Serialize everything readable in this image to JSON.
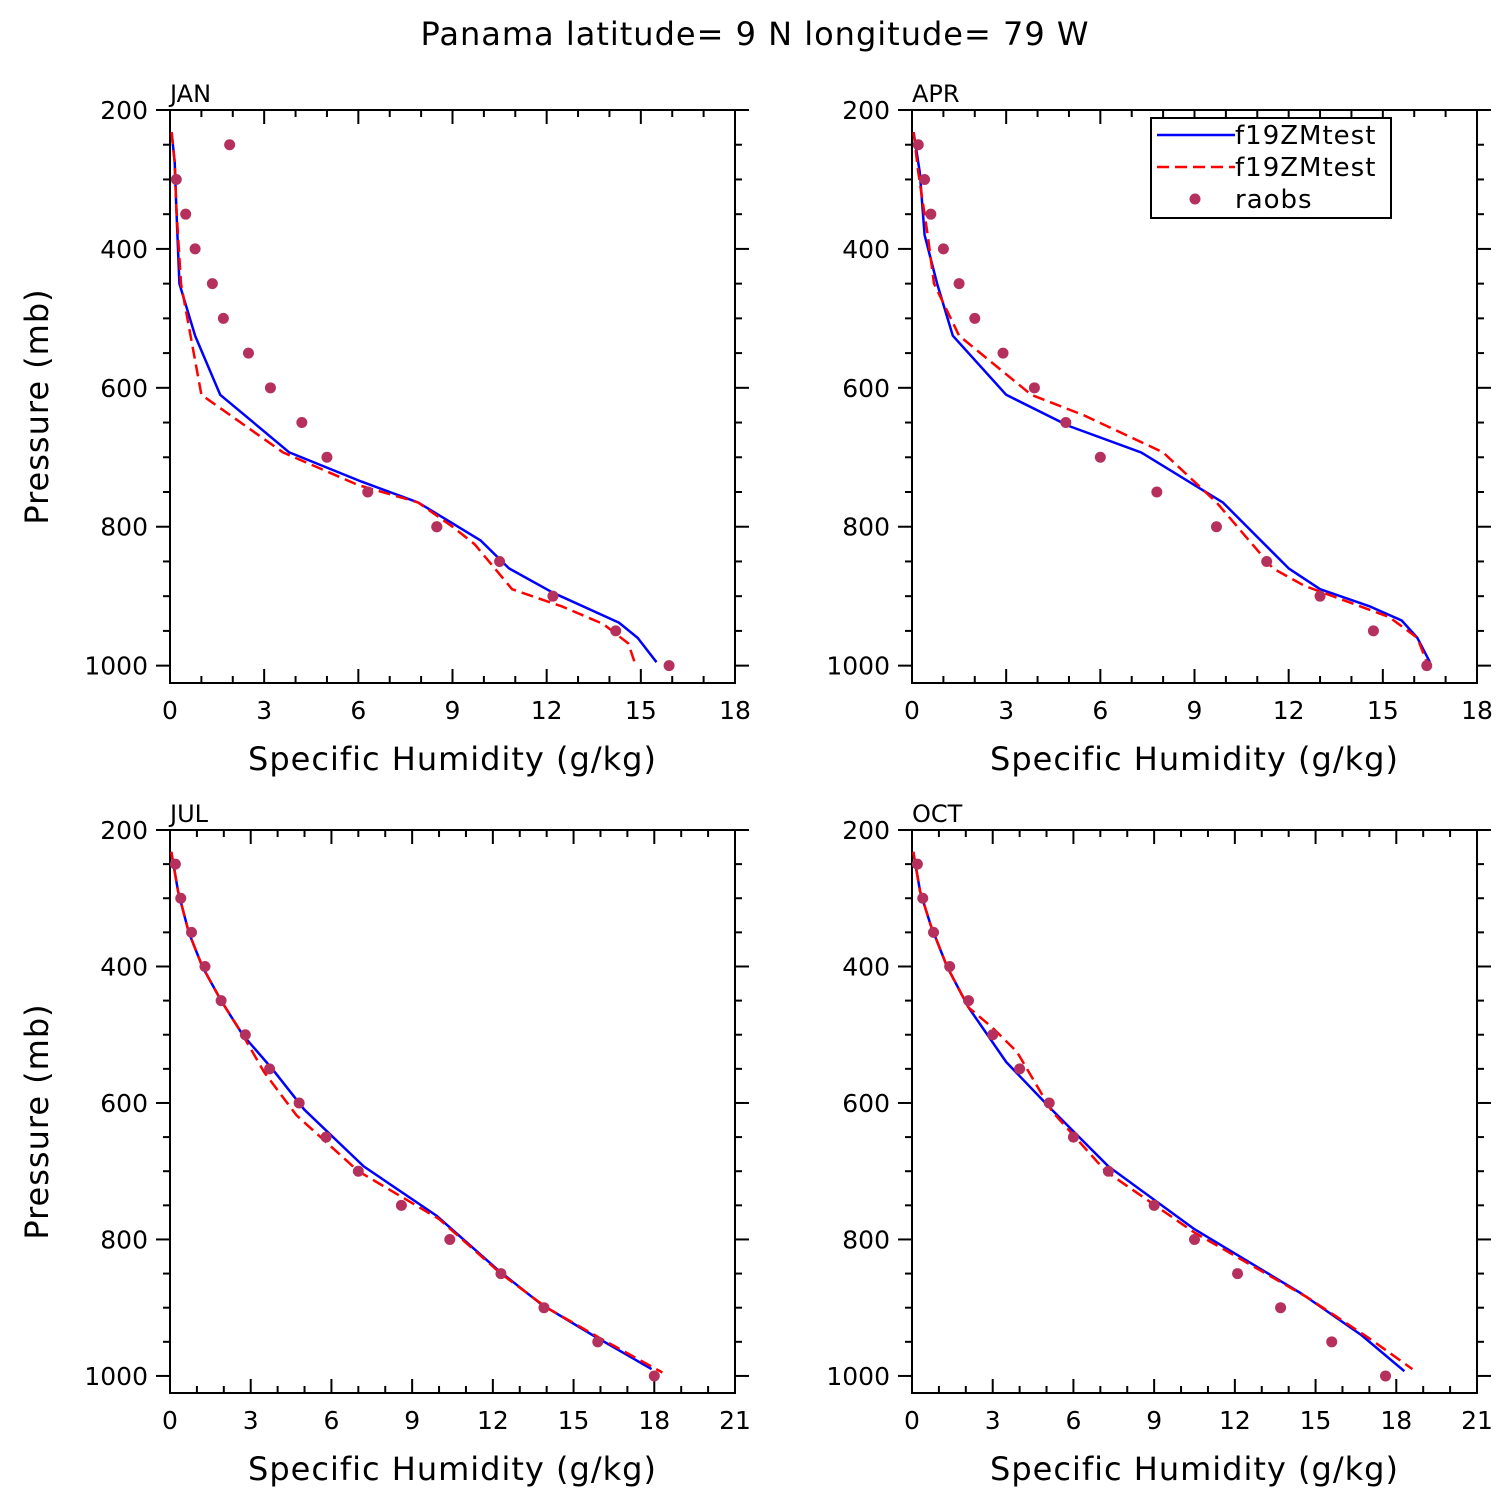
{
  "title": "Panama  latitude= 9 N longitude= 79 W",
  "legend": {
    "entries": [
      {
        "label": "f19ZMtest",
        "style": "solid",
        "color": "#0000ff"
      },
      {
        "label": "f19ZMtest",
        "style": "dashed",
        "color": "#ff0000"
      },
      {
        "label": "raobs",
        "style": "marker",
        "color": "#b5305c"
      }
    ]
  },
  "colors": {
    "model_solid": "#0000ff",
    "model_dashed": "#ff0000",
    "raobs": "#b5305c"
  },
  "chart_data": [
    {
      "type": "line",
      "panel": "JAN",
      "xlabel": "Specific Humidity (g/kg)",
      "ylabel": "Pressure (mb)",
      "xlim": [
        0,
        18
      ],
      "ylim": [
        200,
        1025
      ],
      "y_inverted": true,
      "xticks": [
        0,
        3,
        6,
        9,
        12,
        15,
        18
      ],
      "yticks": [
        200,
        400,
        600,
        800,
        1000
      ],
      "series": [
        {
          "name": "f19ZMtest",
          "style": "solid",
          "x": [
            0.05,
            0.15,
            0.2,
            0.3,
            0.8,
            1.6,
            3.8,
            6.1,
            7.9,
            9.9,
            10.8,
            12.2,
            14.3,
            14.9,
            15.5
          ],
          "y": [
            232,
            275,
            340,
            450,
            525,
            610,
            693,
            735,
            765,
            820,
            860,
            895,
            938,
            960,
            995
          ]
        },
        {
          "name": "f19ZMtest",
          "style": "dashed",
          "x": [
            0.05,
            0.15,
            0.2,
            0.35,
            1,
            3.6,
            6,
            7.9,
            9,
            9.7,
            10.9,
            12.5,
            13.8,
            14.6,
            14.8
          ],
          "y": [
            232,
            275,
            340,
            450,
            610,
            693,
            740,
            765,
            800,
            825,
            890,
            915,
            940,
            968,
            995
          ]
        },
        {
          "name": "raobs",
          "style": "marker",
          "x": [
            1.9,
            0.2,
            0.5,
            0.8,
            1.35,
            1.7,
            2.5,
            3.2,
            4.2,
            5,
            6.3,
            8.5,
            8.5,
            10.5,
            12.2,
            14.2,
            15.9
          ],
          "y": [
            250,
            300,
            350,
            400,
            450,
            500,
            550,
            600,
            650,
            700,
            750,
            800,
            800,
            850,
            900,
            950,
            1000
          ]
        }
      ]
    },
    {
      "type": "line",
      "panel": "APR",
      "xlabel": "Specific Humidity (g/kg)",
      "ylabel": "",
      "xlim": [
        0,
        18
      ],
      "ylim": [
        200,
        1025
      ],
      "y_inverted": true,
      "xticks": [
        0,
        3,
        6,
        9,
        12,
        15,
        18
      ],
      "yticks": [
        200,
        400,
        600,
        800,
        1000
      ],
      "series": [
        {
          "name": "f19ZMtest",
          "style": "solid",
          "x": [
            0.05,
            0.25,
            0.4,
            0.8,
            1.3,
            3,
            5,
            7.3,
            9.9,
            12,
            13,
            14.6,
            15.6,
            16.1,
            16.5
          ],
          "y": [
            232,
            290,
            380,
            450,
            525,
            610,
            655,
            693,
            765,
            860,
            890,
            915,
            935,
            960,
            995
          ]
        },
        {
          "name": "f19ZMtest",
          "style": "dashed",
          "x": [
            0.05,
            0.2,
            0.5,
            0.7,
            1.5,
            3.8,
            5.5,
            8,
            9.7,
            11.5,
            12.5,
            14,
            15.2,
            16.1,
            16.4
          ],
          "y": [
            232,
            290,
            380,
            450,
            525,
            610,
            640,
            693,
            765,
            860,
            885,
            910,
            930,
            960,
            995
          ]
        },
        {
          "name": "raobs",
          "style": "marker",
          "x": [
            0.2,
            0.4,
            0.6,
            1,
            1.5,
            2,
            2.9,
            3.9,
            4.9,
            6,
            7.8,
            9.7,
            11.3,
            13,
            14.7,
            16.4
          ],
          "y": [
            250,
            300,
            350,
            400,
            450,
            500,
            550,
            600,
            650,
            700,
            750,
            800,
            850,
            900,
            950,
            1000
          ]
        }
      ]
    },
    {
      "type": "line",
      "panel": "JUL",
      "xlabel": "Specific Humidity (g/kg)",
      "ylabel": "Pressure (mb)",
      "xlim": [
        0,
        21
      ],
      "ylim": [
        200,
        1025
      ],
      "y_inverted": true,
      "xticks": [
        0,
        3,
        6,
        9,
        12,
        15,
        18,
        21
      ],
      "yticks": [
        200,
        400,
        600,
        800,
        1000
      ],
      "series": [
        {
          "name": "f19ZMtest",
          "style": "solid",
          "x": [
            0.05,
            0.3,
            0.7,
            1.2,
            1.9,
            2.7,
            3.8,
            5,
            7.2,
            9.9,
            12.2,
            13.8,
            15.7,
            17.9
          ],
          "y": [
            232,
            290,
            350,
            400,
            450,
            500,
            550,
            610,
            693,
            765,
            845,
            895,
            940,
            990
          ]
        },
        {
          "name": "f19ZMtest",
          "style": "dashed",
          "x": [
            0.05,
            0.3,
            0.7,
            1.2,
            1.9,
            2.7,
            3.5,
            4.7,
            7,
            10,
            12.3,
            14,
            16,
            18.3
          ],
          "y": [
            232,
            290,
            350,
            400,
            450,
            500,
            555,
            618,
            700,
            770,
            850,
            900,
            945,
            995
          ]
        },
        {
          "name": "raobs",
          "style": "marker",
          "x": [
            0.2,
            0.4,
            0.8,
            1.3,
            1.9,
            2.8,
            3.7,
            4.8,
            5.8,
            7,
            8.6,
            10.4,
            12.3,
            13.9,
            15.9,
            18
          ],
          "y": [
            250,
            300,
            350,
            400,
            450,
            500,
            550,
            600,
            650,
            700,
            750,
            800,
            850,
            900,
            950,
            1000
          ]
        }
      ]
    },
    {
      "type": "line",
      "panel": "OCT",
      "xlabel": "Specific Humidity (g/kg)",
      "ylabel": "",
      "xlim": [
        0,
        21
      ],
      "ylim": [
        200,
        1025
      ],
      "y_inverted": true,
      "xticks": [
        0,
        3,
        6,
        9,
        12,
        15,
        18,
        21
      ],
      "yticks": [
        200,
        400,
        600,
        800,
        1000
      ],
      "series": [
        {
          "name": "f19ZMtest",
          "style": "solid",
          "x": [
            0.05,
            0.3,
            0.7,
            1.3,
            2.1,
            3.5,
            5.2,
            7.3,
            10.5,
            14.5,
            16.7,
            18.3
          ],
          "y": [
            232,
            290,
            340,
            400,
            460,
            540,
            610,
            693,
            785,
            880,
            940,
            993
          ]
        },
        {
          "name": "f19ZMtest",
          "style": "dashed",
          "x": [
            0.05,
            0.3,
            0.7,
            1.3,
            2.1,
            3,
            3.9,
            5.2,
            7.2,
            10.5,
            14.7,
            17,
            18.6
          ],
          "y": [
            232,
            290,
            340,
            400,
            460,
            490,
            525,
            612,
            700,
            790,
            885,
            945,
            990
          ]
        },
        {
          "name": "raobs",
          "style": "marker",
          "x": [
            0.2,
            0.4,
            0.8,
            1.4,
            2.1,
            3,
            4,
            5.1,
            6,
            7.3,
            9,
            10.5,
            12.1,
            13.7,
            15.6,
            17.6
          ],
          "y": [
            250,
            300,
            350,
            400,
            450,
            500,
            550,
            600,
            650,
            700,
            750,
            800,
            850,
            900,
            950,
            1000
          ]
        }
      ]
    }
  ]
}
